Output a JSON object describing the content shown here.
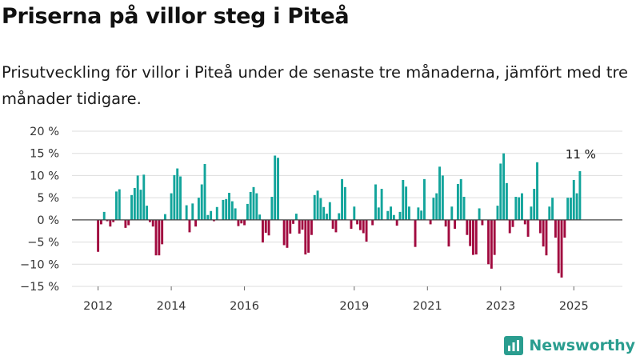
{
  "title": "Priserna på villor steg i Piteå",
  "subtitle": "Prisutveckling för villor i Piteå under de senaste tre månaderna, jämfört med tre månader tidigare.",
  "brand": {
    "name": "Newsworthy",
    "logo_icon": "bar-chart-icon"
  },
  "colors": {
    "positive": "#12a49b",
    "negative": "#a10a3f",
    "grid": "#dddddd",
    "zero_line": "#444444"
  },
  "chart_data": {
    "type": "bar",
    "title": "Priserna på villor steg i Piteå",
    "subtitle": "Prisutveckling för villor i Piteå under de senaste tre månaderna, jämfört med tre månader tidigare.",
    "ylabel": "",
    "xlabel": "",
    "y_unit": "%",
    "ylim": [
      -15,
      20
    ],
    "y_ticks": [
      -15,
      -10,
      -5,
      0,
      5,
      10,
      15,
      20
    ],
    "y_tick_labels": [
      "−15 %",
      "−10 %",
      "−5 %",
      "0 %",
      "5 %",
      "10 %",
      "15 %",
      "20 %"
    ],
    "x_start": "2012-01",
    "x_tick_labels": [
      "2012",
      "2014",
      "2016",
      "2019",
      "2021",
      "2023",
      "2025"
    ],
    "x_tick_dates": [
      "2012-01",
      "2014-01",
      "2016-01",
      "2019-01",
      "2021-01",
      "2023-01",
      "2025-01"
    ],
    "grid": true,
    "annotation": "11 %",
    "values": [
      -7.2,
      -1.0,
      1.8,
      -0.3,
      -1.5,
      -0.5,
      6.4,
      6.9,
      0,
      -1.8,
      -1.2,
      5.6,
      7.2,
      10.0,
      6.8,
      10.2,
      3.2,
      -0.5,
      -1.5,
      -8.0,
      -8.0,
      -5.5,
      1.3,
      0,
      6.0,
      10.1,
      11.6,
      9.8,
      0,
      3.3,
      -2.8,
      3.7,
      -1.5,
      5.0,
      8.0,
      12.6,
      1.1,
      2.0,
      -0.3,
      2.9,
      0,
      4.5,
      4.7,
      6.1,
      4.2,
      2.6,
      -1.4,
      -0.8,
      -1.2,
      3.6,
      6.3,
      7.4,
      6.0,
      1.2,
      -5.1,
      -2.9,
      -3.5,
      5.2,
      14.5,
      14.0,
      0,
      -5.7,
      -6.3,
      -3.1,
      -0.9,
      1.4,
      -3.1,
      -2.2,
      -7.8,
      -7.4,
      -3.4,
      5.6,
      6.6,
      4.9,
      2.9,
      1.4,
      4.0,
      -2.0,
      -2.8,
      1.5,
      9.2,
      7.4,
      0,
      -2.0,
      3.0,
      -1.0,
      -2.3,
      -3.0,
      -4.9,
      0,
      -1.2,
      8.0,
      2.8,
      7.0,
      0,
      2.0,
      3.0,
      1.1,
      -1.3,
      1.8,
      9.0,
      7.5,
      3.0,
      0,
      -6.1,
      2.8,
      2.1,
      9.2,
      0,
      -1.0,
      5.0,
      6.0,
      12.0,
      10.0,
      -1.5,
      -6.0,
      3.0,
      -2.0,
      8.1,
      9.2,
      5.2,
      -3.4,
      -5.9,
      -7.9,
      -7.8,
      2.6,
      -1.2,
      0,
      -10.0,
      -11.0,
      -7.9,
      3.2,
      12.7,
      15.0,
      8.3,
      -3.0,
      -1.6,
      5.2,
      5.1,
      6.0,
      -1.0,
      -3.8,
      3.0,
      7.0,
      13.0,
      -3.0,
      -6.0,
      -8.0,
      3.0,
      5.0,
      -4.0,
      -12.0,
      -13.0,
      -4.0,
      5.0,
      5.0,
      9.0,
      6.0,
      11.0
    ]
  }
}
